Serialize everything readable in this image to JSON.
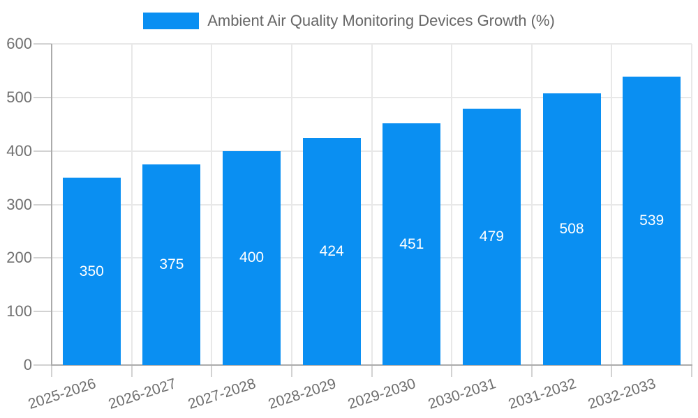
{
  "legend": {
    "label": "Ambient Air Quality Monitoring Devices Growth (%)",
    "swatch_color": "#0a8ff2"
  },
  "chart_data": {
    "type": "bar",
    "categories": [
      "2025-2026",
      "2026-2027",
      "2027-2028",
      "2028-2029",
      "2029-2030",
      "2030-2031",
      "2031-2032",
      "2032-2033"
    ],
    "values": [
      350,
      375,
      400,
      424,
      451,
      479,
      508,
      539
    ],
    "series": [
      {
        "name": "Ambient Air Quality Monitoring Devices Growth (%)",
        "values": [
          350,
          375,
          400,
          424,
          451,
          479,
          508,
          539
        ]
      }
    ],
    "title": "",
    "xlabel": "",
    "ylabel": "",
    "ylim": [
      0,
      600
    ],
    "yticks": [
      0,
      100,
      200,
      300,
      400,
      500,
      600
    ],
    "grid": true,
    "legend_position": "top",
    "bar_color": "#0a8ff2",
    "bar_label_color": "#ffffff"
  },
  "colors": {
    "bar": "#0a8ff2",
    "gridline": "#e8e8e8",
    "axis": "#ababab",
    "tick": "#d2d2d2",
    "axis_text": "#707070",
    "legend_text": "#666666"
  }
}
